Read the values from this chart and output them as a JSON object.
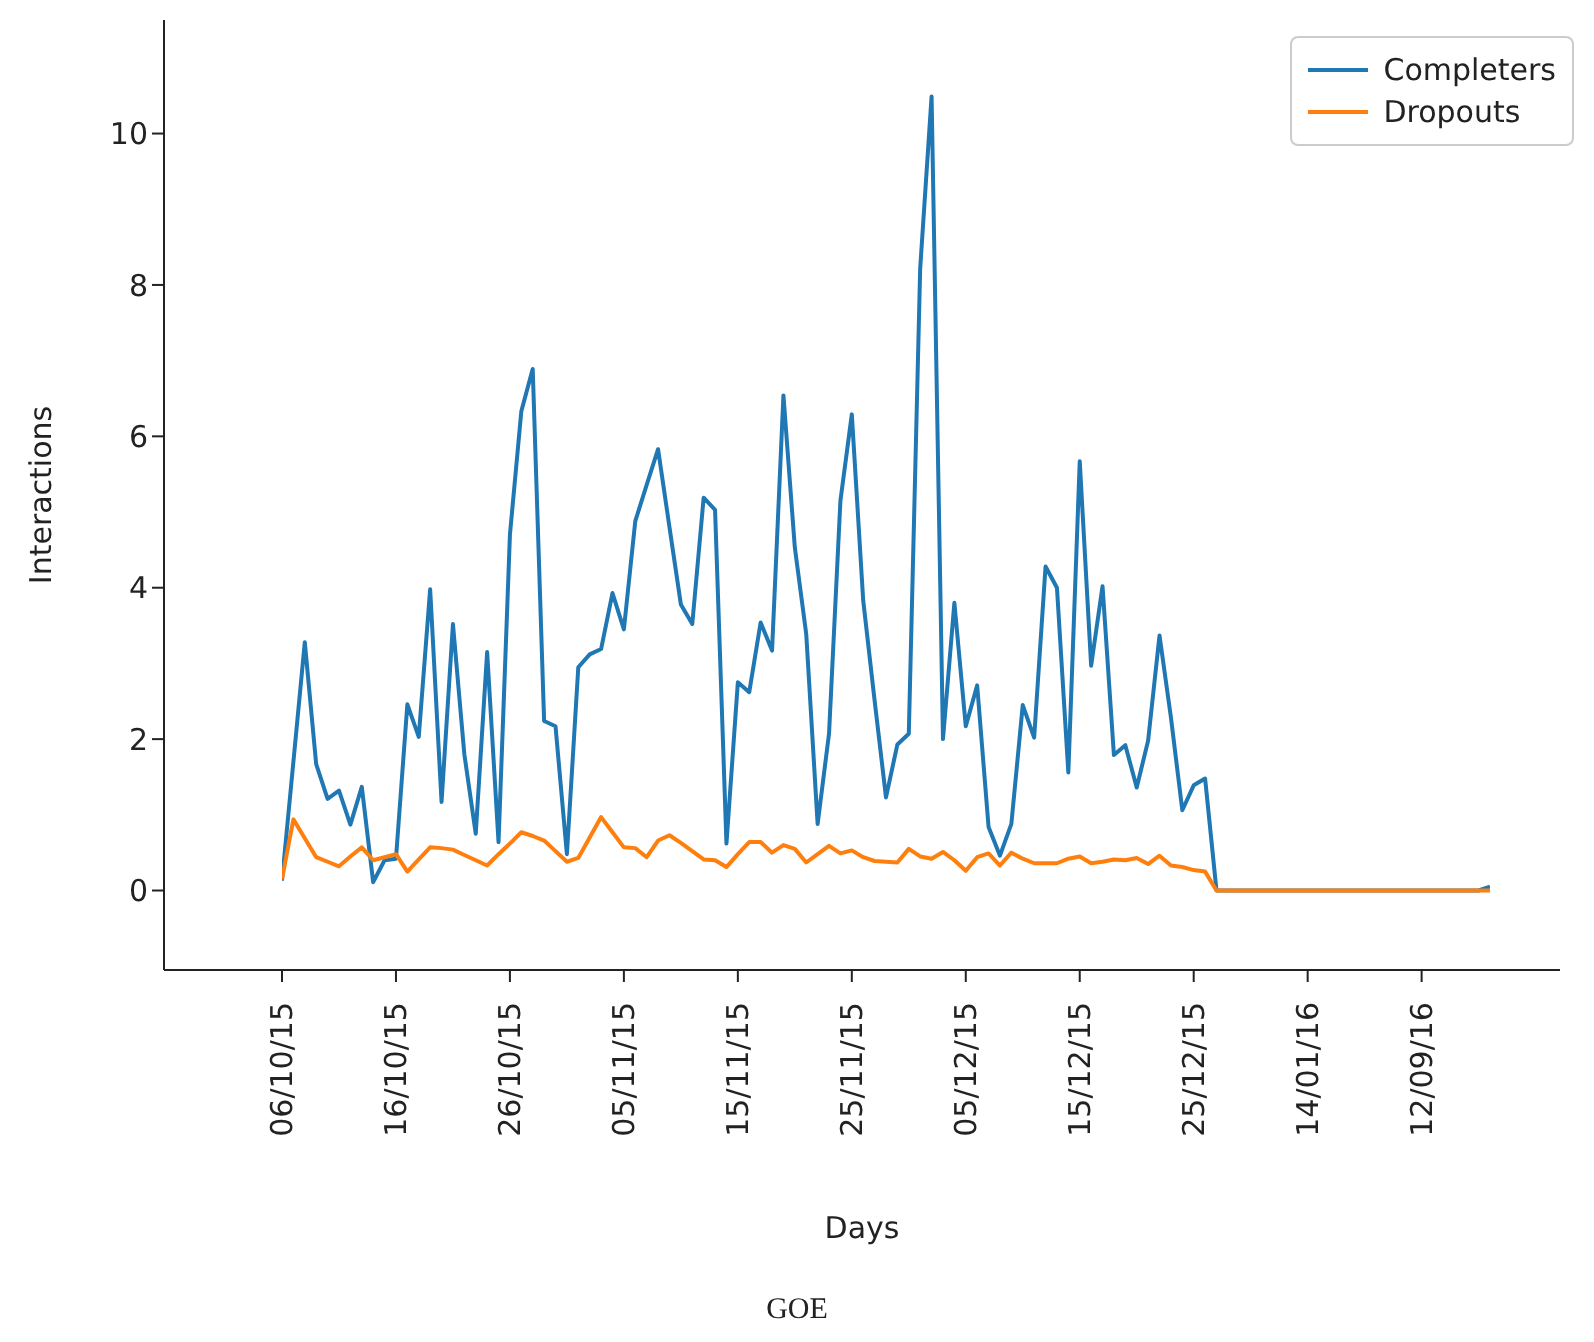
{
  "chart_data": {
    "type": "line",
    "xlabel": "Days",
    "ylabel": "Interactions",
    "annotations": [
      "GOE"
    ],
    "legend": "top right",
    "categories": [
      "06/10/15",
      null,
      null,
      null,
      null,
      null,
      null,
      null,
      null,
      null,
      "16/10/15",
      null,
      null,
      null,
      null,
      null,
      null,
      null,
      null,
      null,
      "26/10/15",
      null,
      null,
      null,
      null,
      null,
      null,
      null,
      null,
      null,
      "05/11/15",
      null,
      null,
      null,
      null,
      null,
      null,
      null,
      null,
      null,
      "15/11/15",
      null,
      null,
      null,
      null,
      null,
      null,
      null,
      null,
      null,
      "25/11/15",
      null,
      null,
      null,
      null,
      null,
      null,
      null,
      null,
      null,
      "05/12/15",
      null,
      null,
      null,
      null,
      null,
      null,
      null,
      null,
      null,
      "15/12/15",
      null,
      null,
      null,
      null,
      null,
      null,
      null,
      null,
      null,
      "25/12/15",
      null,
      null,
      null,
      null,
      null,
      null,
      null,
      null,
      null,
      "14/01/16",
      null,
      null,
      null,
      null,
      null,
      null,
      null,
      null,
      null,
      "12/09/16",
      null,
      null,
      null,
      null,
      null,
      null
    ],
    "ylim": [
      -1.05,
      11.5
    ],
    "yticks": [
      0,
      2,
      4,
      6,
      8,
      10
    ],
    "series": [
      {
        "name": "Completers",
        "color": "#1f77b4",
        "values": [
          0.13,
          1.7,
          3.28,
          1.67,
          1.21,
          1.32,
          0.87,
          1.37,
          0.11,
          0.4,
          0.42,
          2.46,
          2.03,
          3.98,
          1.17,
          3.52,
          1.8,
          0.75,
          3.15,
          0.64,
          4.7,
          6.33,
          6.89,
          2.24,
          2.17,
          0.48,
          2.95,
          3.12,
          3.19,
          3.93,
          3.45,
          4.88,
          5.36,
          5.83,
          4.8,
          3.78,
          3.52,
          5.19,
          5.03,
          0.62,
          2.75,
          2.62,
          3.54,
          3.17,
          6.54,
          4.53,
          3.39,
          0.88,
          2.07,
          5.15,
          6.29,
          3.83,
          2.51,
          1.23,
          1.93,
          2.07,
          8.22,
          10.49,
          2.0,
          3.8,
          2.17,
          2.71,
          0.84,
          0.46,
          0.88,
          2.45,
          2.02,
          4.28,
          4.0,
          1.56,
          5.67,
          2.97,
          4.02,
          1.79,
          1.92,
          1.36,
          1.98,
          3.37,
          2.29,
          1.06,
          1.39,
          1.48,
          0,
          0,
          0,
          0,
          0,
          0,
          0,
          0,
          0,
          0,
          0,
          0,
          0,
          0,
          0,
          0,
          0,
          0,
          0,
          0,
          0,
          0,
          0,
          0,
          0.05
        ]
      },
      {
        "name": "Dropouts",
        "color": "#ff7f0e",
        "values": [
          0.15,
          0.94,
          0.69,
          0.44,
          0.38,
          0.32,
          0.45,
          0.57,
          0.4,
          0.44,
          0.48,
          0.25,
          0.41,
          0.57,
          0.56,
          0.54,
          0.47,
          0.4,
          0.33,
          0.48,
          0.62,
          0.77,
          0.72,
          0.66,
          0.52,
          0.38,
          0.43,
          0.7,
          0.97,
          0.77,
          0.57,
          0.56,
          0.44,
          0.66,
          0.73,
          0.63,
          0.52,
          0.41,
          0.4,
          0.31,
          0.48,
          0.64,
          0.64,
          0.5,
          0.6,
          0.55,
          0.37,
          0.48,
          0.59,
          0.49,
          0.53,
          0.44,
          0.39,
          0.38,
          0.37,
          0.55,
          0.45,
          0.42,
          0.51,
          0.4,
          0.26,
          0.44,
          0.49,
          0.33,
          0.5,
          0.42,
          0.36,
          0.36,
          0.36,
          0.42,
          0.45,
          0.36,
          0.38,
          0.41,
          0.4,
          0.43,
          0.35,
          0.46,
          0.33,
          0.31,
          0.27,
          0.25,
          0,
          0,
          0,
          0,
          0,
          0,
          0,
          0,
          0,
          0,
          0,
          0,
          0,
          0,
          0,
          0,
          0,
          0,
          0,
          0,
          0,
          0,
          0,
          0,
          0
        ]
      }
    ]
  }
}
